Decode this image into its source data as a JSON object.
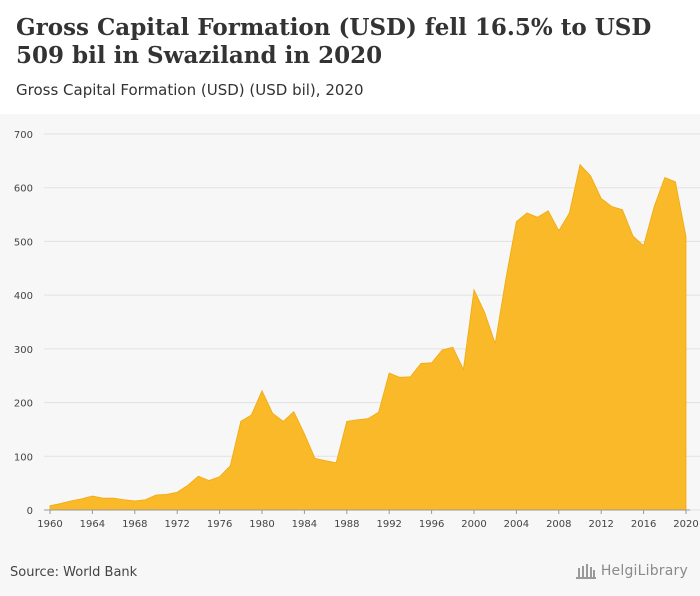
{
  "header": {
    "title": "Gross Capital Formation (USD) fell 16.5% to USD 509 bil in Swaziland in 2020",
    "subtitle": "Gross Capital Formation (USD) (USD bil), 2020"
  },
  "footer": {
    "source": "Source: World Bank",
    "brand": "HelgiLibrary"
  },
  "colors": {
    "area": "#f9b928",
    "area_stroke": "#f0aa10",
    "grid": "#e2e2e2",
    "background": "#f7f7f7"
  },
  "chart_data": {
    "type": "area",
    "title": "Gross Capital Formation (USD) fell 16.5% to USD 509 bil in Swaziland in 2020",
    "subtitle": "Gross Capital Formation (USD) (USD bil), 2020",
    "xlabel": "",
    "ylabel": "",
    "xlim": [
      1960,
      2020
    ],
    "ylim": [
      0,
      700
    ],
    "y_ticks": [
      0,
      100,
      200,
      300,
      400,
      500,
      600,
      700
    ],
    "x_ticks": [
      1960,
      1964,
      1968,
      1972,
      1976,
      1980,
      1984,
      1988,
      1992,
      1996,
      2000,
      2004,
      2008,
      2012,
      2016,
      2020
    ],
    "grid": true,
    "legend": "none",
    "series": [
      {
        "x": [
          1960,
          1961,
          1962,
          1963,
          1964,
          1965,
          1966,
          1967,
          1968,
          1969,
          1970,
          1971,
          1972,
          1973,
          1974,
          1975,
          1976,
          1977,
          1978,
          1979,
          1980,
          1981,
          1982,
          1983,
          1984,
          1985,
          1986,
          1987,
          1988,
          1989,
          1990,
          1991,
          1992,
          1993,
          1994,
          1995,
          1996,
          1997,
          1998,
          1999,
          2000,
          2001,
          2002,
          2003,
          2004,
          2005,
          2006,
          2007,
          2008,
          2009,
          2010,
          2011,
          2012,
          2013,
          2014,
          2015,
          2016,
          2017,
          2018,
          2019,
          2020
        ],
        "values": [
          8,
          12,
          17,
          21,
          26,
          22,
          22,
          19,
          17,
          19,
          28,
          29,
          33,
          46,
          63,
          55,
          62,
          82,
          165,
          177,
          222,
          180,
          165,
          183,
          142,
          96,
          92,
          88,
          165,
          168,
          170,
          182,
          255,
          247,
          248,
          273,
          274,
          298,
          303,
          262,
          410,
          368,
          310,
          430,
          537,
          553,
          545,
          557,
          520,
          553,
          643,
          622,
          580,
          565,
          559,
          510,
          492,
          565,
          619,
          611,
          509
        ]
      }
    ]
  }
}
